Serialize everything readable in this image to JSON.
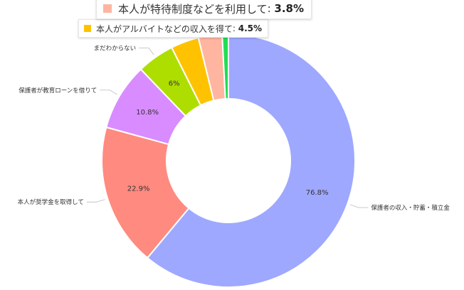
{
  "chart_data": {
    "type": "pie",
    "variant": "donut",
    "title": "",
    "slices": [
      {
        "name": "保護者の収入・貯蓄・積立金",
        "value": 76.8,
        "label": "76.8%",
        "color": "#9ea8ff"
      },
      {
        "name": "本人が奨学金を取得して",
        "value": 22.9,
        "label": "22.9%",
        "color": "#ff8a80"
      },
      {
        "name": "保護者が教育ローンを借りて",
        "value": 10.8,
        "label": "10.8%",
        "color": "#d98cff"
      },
      {
        "name": "まだわからない",
        "value": 6.0,
        "label": "6%",
        "color": "#aede00"
      },
      {
        "name": "本人がアルバイトなどの収入を得て",
        "value": 4.5,
        "label": "",
        "color": "#ffc200"
      },
      {
        "name": "本人が特待制度などを利用して",
        "value": 3.8,
        "label": "",
        "color": "#ffb5a0"
      },
      {
        "name": "",
        "value": 1.0,
        "label": "",
        "color": "#22dd55"
      }
    ],
    "tooltips": [
      {
        "name": "本人が特待制度などを利用して",
        "value_text": "3.8%",
        "color": "#ffb5a0"
      },
      {
        "name": "本人がアルバイトなどの収入を得て",
        "value_text": "4.5%",
        "color": "#ffc200"
      }
    ]
  }
}
